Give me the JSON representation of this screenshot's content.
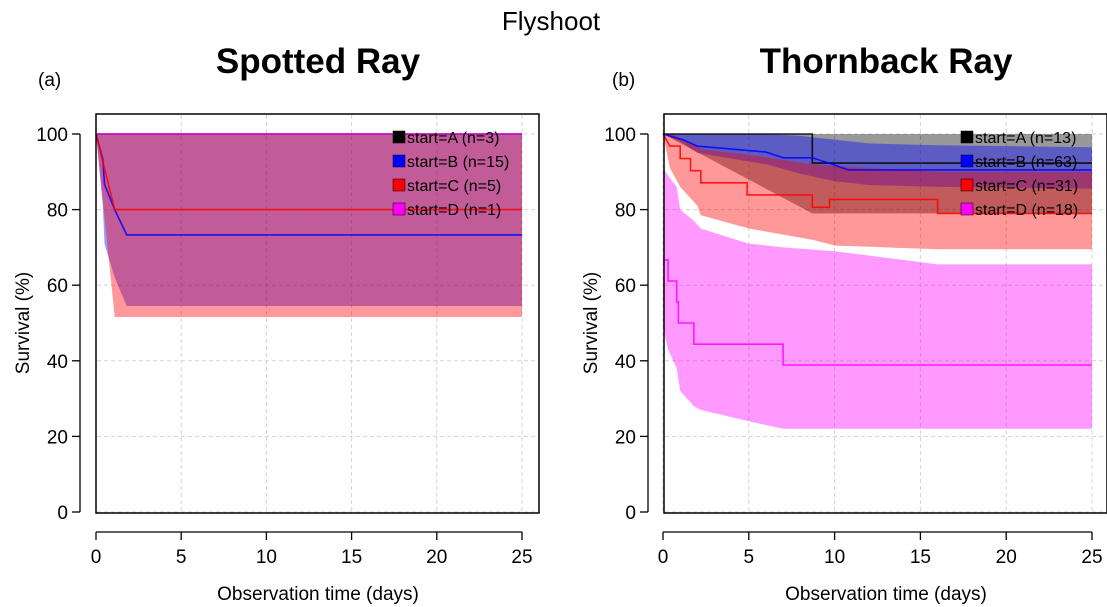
{
  "figure": {
    "title": "Flyshoot"
  },
  "chart_data": [
    {
      "type": "line",
      "panel_label": "(a)",
      "title": "Spotted Ray",
      "xlabel": "Observation time (days)",
      "ylabel": "Survival (%)",
      "xlim": [
        0,
        25
      ],
      "ylim": [
        0,
        100
      ],
      "xticks": [
        "0",
        "5",
        "10",
        "15",
        "20",
        "25"
      ],
      "yticks": [
        "0",
        "20",
        "40",
        "60",
        "80",
        "100"
      ],
      "grid": true,
      "legend_position": "top-right",
      "series": [
        {
          "name": "start=A (n=3)",
          "color": "#000000",
          "fill": "#000000",
          "curve": [
            [
              0,
              100
            ],
            [
              25,
              100
            ]
          ],
          "ci_x": [
            0,
            25
          ],
          "ci_upper": [
            100,
            100
          ],
          "ci_lower": [
            100,
            100
          ]
        },
        {
          "name": "start=B (n=15)",
          "color": "#0000ff",
          "fill": "#0000ff",
          "curve": [
            [
              0,
              100
            ],
            [
              0.4,
              93.3
            ],
            [
              0.5,
              86.7
            ],
            [
              1.1,
              80
            ],
            [
              1.8,
              73.3
            ],
            [
              25,
              73.3
            ]
          ],
          "ci_x": [
            0,
            0.4,
            0.5,
            1.1,
            1.8,
            25
          ],
          "ci_upper": [
            100,
            100,
            100,
            100,
            100,
            100
          ],
          "ci_lower": [
            100,
            81,
            71,
            62,
            54.5,
            54.5
          ]
        },
        {
          "name": "start=C (n=5)",
          "color": "#ff0000",
          "fill": "#ff0000",
          "curve": [
            [
              0,
              100
            ],
            [
              1.1,
              80
            ],
            [
              25,
              80
            ]
          ],
          "ci_x": [
            0,
            1.1,
            25
          ],
          "ci_upper": [
            100,
            100,
            100
          ],
          "ci_lower": [
            100,
            51.6,
            51.6
          ]
        },
        {
          "name": "start=D (n=1)",
          "color": "#ff00ff",
          "fill": "#ff00ff",
          "curve": [
            [
              0,
              100
            ],
            [
              25,
              100
            ]
          ],
          "ci_x": [
            0,
            25
          ],
          "ci_upper": [
            100,
            100
          ],
          "ci_lower": [
            100,
            100
          ]
        }
      ]
    },
    {
      "type": "line",
      "panel_label": "(b)",
      "title": "Thornback Ray",
      "xlabel": "Observation time (days)",
      "ylabel": "Survival (%)",
      "xlim": [
        0,
        25
      ],
      "ylim": [
        0,
        100
      ],
      "xticks": [
        "0",
        "5",
        "10",
        "15",
        "20",
        "25"
      ],
      "yticks": [
        "0",
        "20",
        "40",
        "60",
        "80",
        "100"
      ],
      "grid": true,
      "legend_position": "top-right",
      "series": [
        {
          "name": "start=A (n=13)",
          "color": "#000000",
          "fill": "#000000",
          "curve": [
            [
              0,
              100
            ],
            [
              8.7,
              100
            ],
            [
              8.7,
              92.3
            ],
            [
              25,
              92.3
            ]
          ],
          "ci_x": [
            0,
            8.7,
            25
          ],
          "ci_upper": [
            100,
            100,
            100
          ],
          "ci_lower": [
            100,
            79,
            79
          ]
        },
        {
          "name": "start=B (n=63)",
          "color": "#0000ff",
          "fill": "#0000ff",
          "curve": [
            [
              0,
              100
            ],
            [
              1.2,
              98.4
            ],
            [
              2,
              96.8
            ],
            [
              6,
              95.2
            ],
            [
              7,
              93.7
            ],
            [
              8.7,
              93.7
            ],
            [
              9.8,
              92.1
            ],
            [
              10.8,
              90.5
            ],
            [
              25,
              90.5
            ]
          ],
          "ci_x": [
            0,
            1,
            2,
            4,
            6,
            8,
            10,
            12,
            16,
            25
          ],
          "ci_upper": [
            100,
            100,
            100,
            100,
            100,
            99.5,
            98.5,
            97.5,
            97,
            96.5
          ],
          "ci_lower": [
            100,
            98,
            95,
            93.5,
            92,
            89.5,
            87.5,
            86.5,
            86,
            85.5
          ]
        },
        {
          "name": "start=C (n=31)",
          "color": "#ff0000",
          "fill": "#ff0000",
          "curve": [
            [
              0,
              100
            ],
            [
              0.4,
              96.8
            ],
            [
              1,
              96.8
            ],
            [
              1,
              93.5
            ],
            [
              1.6,
              93.5
            ],
            [
              1.6,
              90.3
            ],
            [
              2.2,
              90.3
            ],
            [
              2.2,
              87.1
            ],
            [
              4.9,
              87.1
            ],
            [
              4.9,
              83.9
            ],
            [
              8.7,
              83.9
            ],
            [
              8.7,
              80.6
            ],
            [
              9.7,
              80.6
            ],
            [
              9.7,
              82.7
            ],
            [
              16,
              82.7
            ],
            [
              16,
              79
            ],
            [
              25,
              79
            ]
          ],
          "ci_x": [
            0,
            0.4,
            1,
            2,
            2.2,
            5,
            8.7,
            10,
            16,
            25
          ],
          "ci_upper": [
            100,
            100,
            99,
            97,
            96,
            94.5,
            92,
            91.5,
            90,
            90
          ],
          "ci_lower": [
            100,
            91,
            86,
            81,
            78.5,
            75,
            72,
            70.5,
            69.5,
            69.5
          ]
        },
        {
          "name": "start=D (n=18)",
          "color": "#ff00ff",
          "fill": "#ff00ff",
          "curve": [
            [
              0,
              66.7
            ],
            [
              0.3,
              66.7
            ],
            [
              0.3,
              61.1
            ],
            [
              0.8,
              61.1
            ],
            [
              0.8,
              55.6
            ],
            [
              0.9,
              55.6
            ],
            [
              0.9,
              50
            ],
            [
              1.8,
              50
            ],
            [
              1.8,
              44.4
            ],
            [
              7,
              44.4
            ],
            [
              7,
              38.9
            ],
            [
              25,
              38.9
            ]
          ],
          "ci_x": [
            0,
            0.3,
            0.8,
            1,
            1.8,
            2.2,
            5,
            7,
            10,
            16,
            25
          ],
          "ci_upper": [
            91,
            89,
            86,
            80,
            77,
            75,
            71,
            70,
            69,
            65.5,
            65.5
          ],
          "ci_lower": [
            49,
            43,
            38,
            32,
            28,
            27,
            24,
            22,
            22,
            22,
            22
          ]
        }
      ]
    }
  ]
}
